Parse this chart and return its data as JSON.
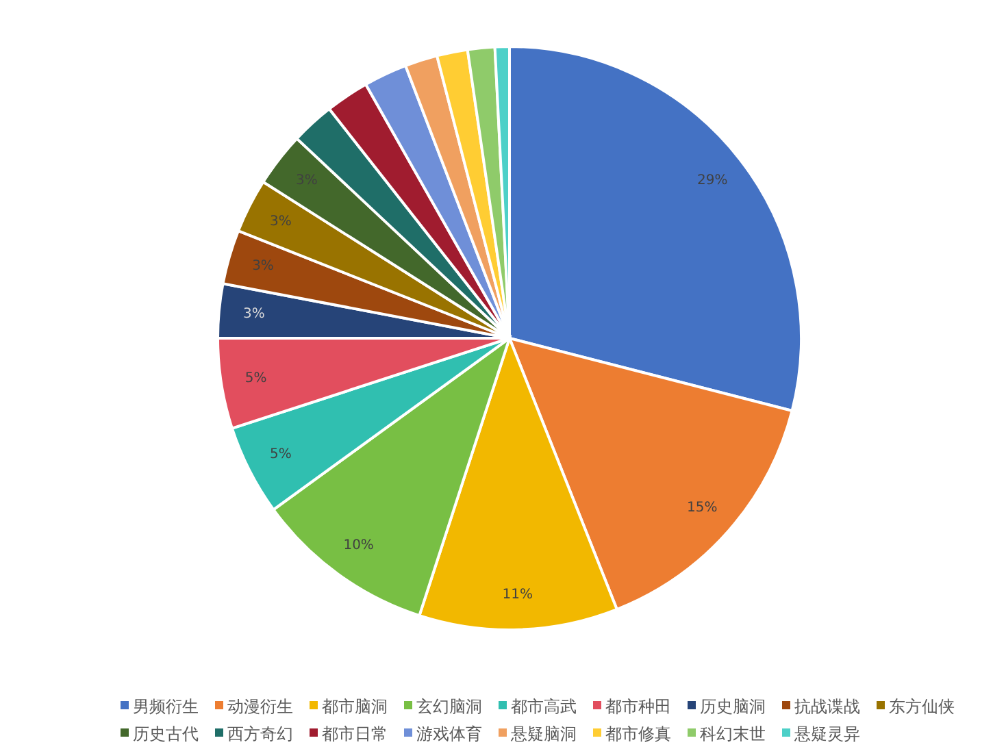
{
  "chart_data": {
    "type": "pie",
    "categories": [
      "男频衍生",
      "动漫衍生",
      "都市脑洞",
      "玄幻脑洞",
      "都市高武",
      "都市种田",
      "历史脑洞",
      "抗战谍战",
      "东方仙侠",
      "历史古代",
      "西方奇幻",
      "都市日常",
      "游戏体育",
      "悬疑脑洞",
      "都市修真",
      "科幻末世",
      "悬疑灵异"
    ],
    "values": [
      29,
      15,
      11,
      10,
      5,
      5,
      3,
      3,
      3,
      3,
      2.4,
      2.4,
      2.4,
      1.8,
      1.7,
      1.5,
      0.8
    ],
    "colors": [
      "#4472c4",
      "#ed7d31",
      "#f2b800",
      "#78bf44",
      "#30bfb0",
      "#e24e5e",
      "#264478",
      "#9e480e",
      "#997300",
      "#43682b",
      "#1f6e68",
      "#a01c2f",
      "#6f8fd8",
      "#f0a060",
      "#ffcd33",
      "#8fcb6a",
      "#4dd0c8"
    ],
    "value_labels": [
      "29%",
      "15%",
      "11%",
      "10%",
      "5%",
      "5%",
      "3%",
      "3%",
      "3%",
      "3%",
      null,
      null,
      null,
      null,
      null,
      null,
      null
    ],
    "legend": "bottom"
  }
}
